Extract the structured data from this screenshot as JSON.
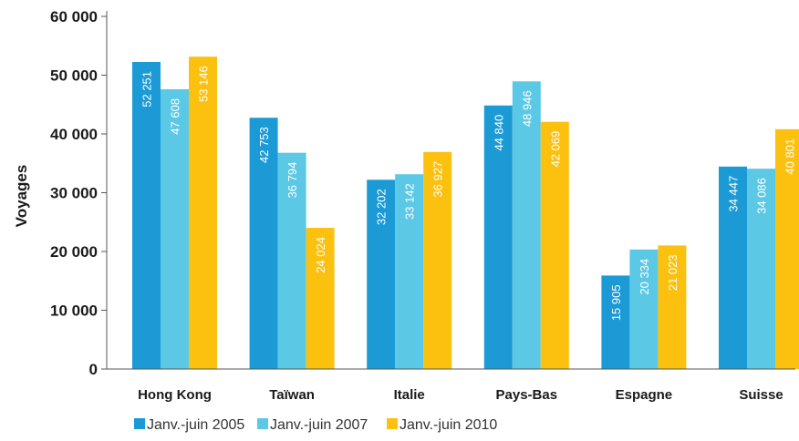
{
  "chart_data": {
    "type": "bar",
    "title": "",
    "xlabel": "",
    "ylabel": "Voyages",
    "ylim": [
      0,
      60000
    ],
    "yticks": [
      {
        "value": 0,
        "label": "0"
      },
      {
        "value": 10000,
        "label": "10 000"
      },
      {
        "value": 20000,
        "label": "20 000"
      },
      {
        "value": 30000,
        "label": "30 000"
      },
      {
        "value": 40000,
        "label": "40 000"
      },
      {
        "value": 50000,
        "label": "50 000"
      },
      {
        "value": 60000,
        "label": "60 000"
      }
    ],
    "categories": [
      "Hong Kong",
      "Taïwan",
      "Italie",
      "Pays-Bas",
      "Espagne",
      "Suisse"
    ],
    "series": [
      {
        "name": "Janv.-juin 2005",
        "color": "#1b9ad6",
        "values": [
          52251,
          42753,
          32202,
          44840,
          15905,
          34447
        ],
        "labels": [
          "52 251",
          "42 753",
          "32 202",
          "44 840",
          "15 905",
          "34 447"
        ]
      },
      {
        "name": "Janv.-juin 2007",
        "color": "#5bc8e6",
        "values": [
          47608,
          36794,
          33142,
          48946,
          20334,
          34086
        ],
        "labels": [
          "47 608",
          "36 794",
          "33 142",
          "48 946",
          "20 334",
          "34 086"
        ]
      },
      {
        "name": "Janv.-juin 2010",
        "color": "#fcc10f",
        "values": [
          53146,
          24024,
          36927,
          42069,
          21023,
          40801
        ],
        "labels": [
          "53 146",
          "24 024",
          "36 927",
          "42 069",
          "21 023",
          "40 801"
        ]
      }
    ],
    "grid": false,
    "legend_position": "bottom-left"
  }
}
